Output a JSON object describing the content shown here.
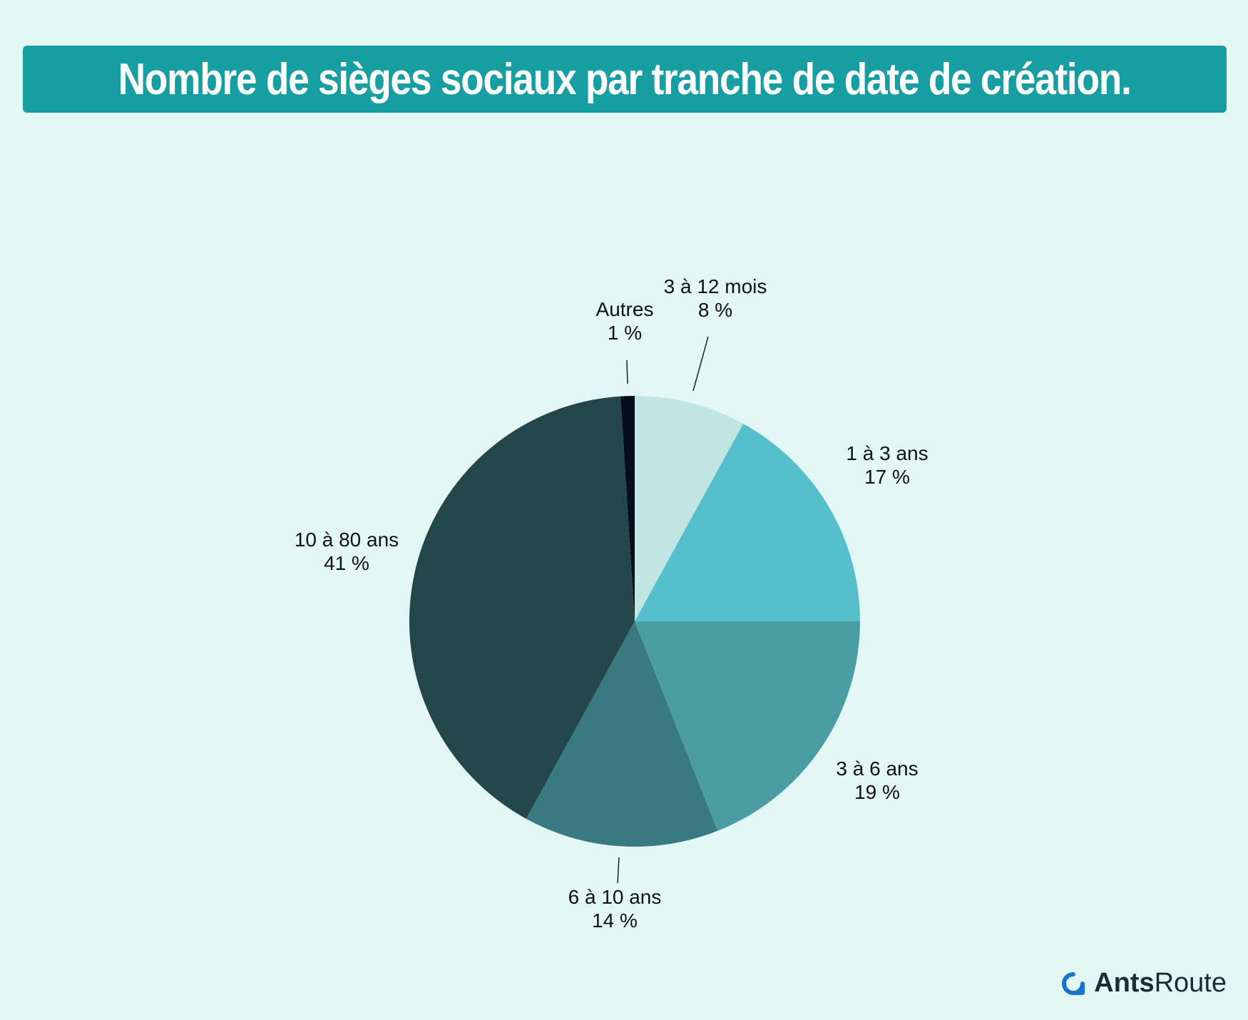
{
  "title": "Nombre de sièges sociaux par tranche de date de création.",
  "chart_data": {
    "type": "pie",
    "slices": [
      {
        "label": "3 à 12 mois",
        "value": 8,
        "value_label": "8 %",
        "color": "#c1e5e2"
      },
      {
        "label": "1 à 3 ans",
        "value": 17,
        "value_label": "17 %",
        "color": "#56bfcc"
      },
      {
        "label": "3 à 6 ans",
        "value": 19,
        "value_label": "19 %",
        "color": "#4a9da2"
      },
      {
        "label": "6 à 10 ans",
        "value": 14,
        "value_label": "14 %",
        "color": "#387a7f"
      },
      {
        "label": "10 à 80 ans",
        "value": 41,
        "value_label": "41 %",
        "color": "#23464b"
      },
      {
        "label": "Autres",
        "value": 1,
        "value_label": "1 %",
        "color": "#070c1c"
      }
    ],
    "start": "12 o'clock",
    "direction": "clockwise"
  },
  "logo": {
    "text_bold": "Ants",
    "text_regular": "Route",
    "icon": "antsroute-logo-icon",
    "icon_color": "#1a73c9"
  }
}
